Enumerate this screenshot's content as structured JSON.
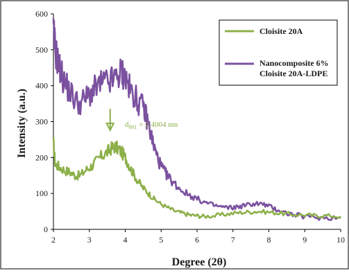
{
  "chart_data": {
    "type": "line",
    "title": "",
    "xlabel": "Degree (2θ)",
    "ylabel": "Intensity (a.u.)",
    "xlim": [
      2,
      10
    ],
    "ylim": [
      0,
      600
    ],
    "xticks": [
      "2",
      "3",
      "4",
      "5",
      "6",
      "7",
      "8",
      "9",
      "10"
    ],
    "yticks": [
      "0",
      "100",
      "200",
      "300",
      "400",
      "500",
      "600"
    ],
    "grid": false,
    "legend_position": "top-right",
    "legend": [
      {
        "lines": [
          "Cloisite 20A"
        ]
      },
      {
        "lines": [
          "Nanocomposite 6%",
          "Cloisite 20A-LDPE"
        ]
      }
    ],
    "annotation": {
      "d_prefix": "d",
      "d_sub": "001",
      "d_value": " = 2.4004 nm",
      "x": 3.58
    },
    "series": [
      {
        "name": "Cloisite 20A",
        "color": "#8DB04A",
        "points": [
          [
            2.0,
            240
          ],
          [
            2.05,
            180
          ],
          [
            2.15,
            175
          ],
          [
            2.3,
            165
          ],
          [
            2.45,
            160
          ],
          [
            2.6,
            150
          ],
          [
            2.75,
            150
          ],
          [
            2.9,
            165
          ],
          [
            3.05,
            175
          ],
          [
            3.2,
            190
          ],
          [
            3.35,
            205
          ],
          [
            3.5,
            215
          ],
          [
            3.6,
            225
          ],
          [
            3.7,
            230
          ],
          [
            3.8,
            225
          ],
          [
            3.9,
            215
          ],
          [
            4.0,
            200
          ],
          [
            4.1,
            180
          ],
          [
            4.2,
            160
          ],
          [
            4.35,
            135
          ],
          [
            4.5,
            115
          ],
          [
            4.65,
            100
          ],
          [
            4.8,
            85
          ],
          [
            5.0,
            70
          ],
          [
            5.2,
            60
          ],
          [
            5.4,
            50
          ],
          [
            5.6,
            45
          ],
          [
            5.8,
            40
          ],
          [
            6.0,
            38
          ],
          [
            6.2,
            36
          ],
          [
            6.5,
            38
          ],
          [
            6.8,
            42
          ],
          [
            7.1,
            46
          ],
          [
            7.4,
            48
          ],
          [
            7.7,
            50
          ],
          [
            8.0,
            48
          ],
          [
            8.3,
            45
          ],
          [
            8.6,
            42
          ],
          [
            9.0,
            40
          ],
          [
            9.3,
            38
          ],
          [
            9.6,
            38
          ],
          [
            10.0,
            36
          ]
        ]
      },
      {
        "name": "Nanocomposite 6% Cloisite 20A-LDPE",
        "color": "#7B519F",
        "points": [
          [
            2.0,
            550
          ],
          [
            2.05,
            500
          ],
          [
            2.12,
            470
          ],
          [
            2.2,
            440
          ],
          [
            2.3,
            410
          ],
          [
            2.45,
            385
          ],
          [
            2.6,
            360
          ],
          [
            2.75,
            350
          ],
          [
            2.9,
            365
          ],
          [
            3.05,
            380
          ],
          [
            3.2,
            395
          ],
          [
            3.35,
            405
          ],
          [
            3.5,
            410
          ],
          [
            3.65,
            415
          ],
          [
            3.8,
            425
          ],
          [
            3.9,
            440
          ],
          [
            3.95,
            430
          ],
          [
            4.05,
            410
          ],
          [
            4.15,
            385
          ],
          [
            4.25,
            375
          ],
          [
            4.35,
            355
          ],
          [
            4.5,
            340
          ],
          [
            4.6,
            310
          ],
          [
            4.7,
            270
          ],
          [
            4.8,
            230
          ],
          [
            4.9,
            200
          ],
          [
            5.0,
            175
          ],
          [
            5.1,
            160
          ],
          [
            5.2,
            145
          ],
          [
            5.35,
            130
          ],
          [
            5.5,
            115
          ],
          [
            5.7,
            100
          ],
          [
            5.9,
            90
          ],
          [
            6.1,
            80
          ],
          [
            6.3,
            72
          ],
          [
            6.5,
            66
          ],
          [
            6.7,
            62
          ],
          [
            6.9,
            60
          ],
          [
            7.1,
            62
          ],
          [
            7.3,
            66
          ],
          [
            7.5,
            70
          ],
          [
            7.7,
            72
          ],
          [
            7.9,
            68
          ],
          [
            8.1,
            60
          ],
          [
            8.3,
            52
          ],
          [
            8.5,
            45
          ],
          [
            8.7,
            40
          ],
          [
            9.0,
            36
          ],
          [
            9.3,
            33
          ],
          [
            9.6,
            32
          ],
          [
            10.0,
            33
          ]
        ]
      }
    ]
  }
}
